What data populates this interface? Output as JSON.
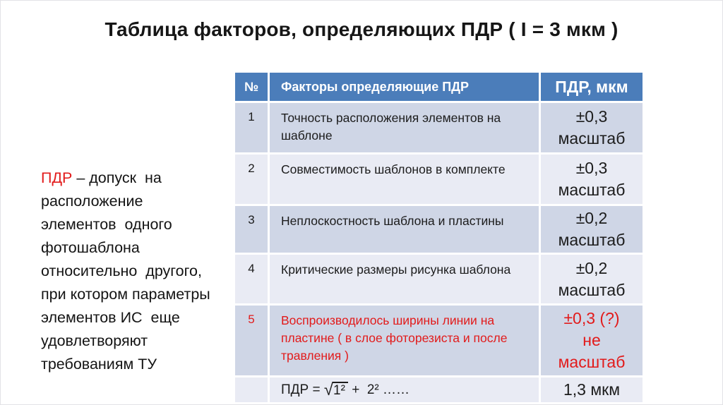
{
  "slide": {
    "title": "Таблица факторов, определяющих ПДР ( I = 3 мкм )"
  },
  "definition": {
    "term": "ПДР",
    "text": " – допуск  на\nрасположение\nэлементов  одного\nфотошаблона\nотносительно  другого,\nпри котором параметры\nэлементов ИС  еще\nудовлетворяют\nтребованиям ТУ"
  },
  "table": {
    "headers": {
      "num": "№",
      "factor": "Факторы определяющие  ПДР",
      "value": "ПДР, мкм"
    },
    "rows": [
      {
        "num": "1",
        "factor": "Точность расположения элементов на шаблоне",
        "value": "±0,3\nмасштаб"
      },
      {
        "num": "2",
        "factor": "Совместимость шаблонов в комплекте",
        "value": "±0,3\nмасштаб"
      },
      {
        "num": "3",
        "factor": "Неплоскостность шаблона и пластины",
        "value": "±0,2\nмасштаб"
      },
      {
        "num": "4",
        "factor": "Критические размеры рисунка шаблона",
        "value": "±0,2\nмасштаб"
      },
      {
        "num": "5",
        "factor": "Воспроизводилось  ширины линии на пластине ( в слое фоторезиста и после травления  )",
        "value": "±0,3 (?)\nне\nмасштаб"
      }
    ],
    "formula_row": {
      "prefix": "ПДР = ",
      "sqrt": "√",
      "radicand": "1²",
      "rest": " +  2² ……",
      "value": "1,3 мкм"
    }
  },
  "colors": {
    "header_bg": "#4b7dba",
    "row_dark": "#cfd6e6",
    "row_light": "#e9ebf4",
    "accent_red": "#e21b1b"
  }
}
